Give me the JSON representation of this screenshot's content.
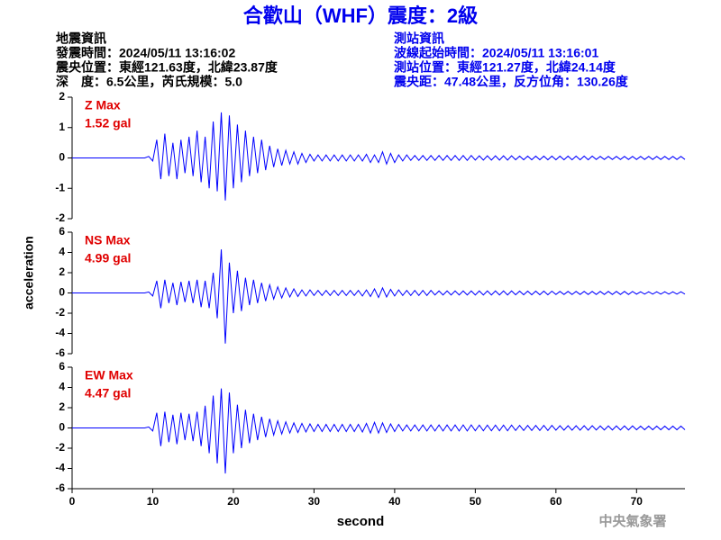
{
  "title": "合歡山（WHF）震度：2級",
  "info_left": [
    "地震資訊",
    "發震時間：2024/05/11 13:16:02",
    "震央位置：東經121.63度，北緯23.87度",
    "深　度：6.5公里，芮氏規模：5.0"
  ],
  "info_right": [
    "測站資訊",
    "波線起始時間：2024/05/11 13:16:01",
    "測站位置：東經121.27度，北緯24.14度",
    "震央距：47.48公里，反方位角：130.26度"
  ],
  "ylabel": "acceleration",
  "xlabel": "second",
  "footer": "中央氣象署",
  "chart_data": [
    {
      "type": "line",
      "max_label": "Z Max",
      "max_value": "1.52 gal",
      "color": "#0000ff",
      "xlim": [
        0,
        76
      ],
      "ylim": [
        -2,
        2
      ],
      "yticks": [
        -2,
        -1,
        0,
        1,
        2
      ],
      "x": [
        0,
        0.5,
        1,
        1.5,
        2,
        2.5,
        3,
        3.5,
        4,
        4.5,
        5,
        5.5,
        6,
        6.5,
        7,
        7.5,
        8,
        8.5,
        9,
        9.5,
        10,
        10.5,
        11,
        11.5,
        12,
        12.5,
        13,
        13.5,
        14,
        14.5,
        15,
        15.5,
        16,
        16.5,
        17,
        17.5,
        18,
        18.5,
        19,
        19.5,
        20,
        20.5,
        21,
        21.5,
        22,
        22.5,
        23,
        23.5,
        24,
        24.5,
        25,
        25.5,
        26,
        26.5,
        27,
        27.5,
        28,
        28.5,
        29,
        29.5,
        30,
        30.5,
        31,
        31.5,
        32,
        32.5,
        33,
        33.5,
        34,
        34.5,
        35,
        35.5,
        36,
        36.5,
        37,
        37.5,
        38,
        38.5,
        39,
        39.5,
        40,
        40.5,
        41,
        41.5,
        42,
        42.5,
        43,
        43.5,
        44,
        44.5,
        45,
        45.5,
        46,
        46.5,
        47,
        47.5,
        48,
        48.5,
        49,
        49.5,
        50,
        50.5,
        51,
        51.5,
        52,
        52.5,
        53,
        53.5,
        54,
        54.5,
        55,
        55.5,
        56,
        56.5,
        57,
        57.5,
        58,
        58.5,
        59,
        59.5,
        60,
        60.5,
        61,
        61.5,
        62,
        62.5,
        63,
        63.5,
        64,
        64.5,
        65,
        65.5,
        66,
        66.5,
        67,
        67.5,
        68,
        68.5,
        69,
        69.5,
        70,
        70.5,
        71,
        71.5,
        72,
        72.5,
        73,
        73.5,
        74,
        74.5,
        75,
        75.5,
        76
      ],
      "values": [
        0,
        0,
        0,
        0,
        0,
        0,
        0,
        0,
        0,
        0,
        0,
        0,
        0,
        0,
        0,
        0,
        0,
        0,
        0,
        0.05,
        -0.1,
        0.6,
        -0.7,
        0.8,
        -0.6,
        0.5,
        -0.7,
        0.6,
        -0.5,
        0.7,
        -0.6,
        0.9,
        -0.8,
        0.7,
        -1,
        1.2,
        -1.1,
        1.5,
        -1.4,
        1.4,
        -1,
        1.1,
        -0.8,
        0.9,
        -0.6,
        0.7,
        -0.5,
        0.6,
        -0.4,
        0.4,
        -0.3,
        0.3,
        -0.25,
        0.25,
        -0.2,
        0.2,
        -0.2,
        0.15,
        -0.15,
        0.12,
        -0.1,
        0.1,
        -0.1,
        0.1,
        -0.1,
        0.1,
        -0.1,
        0.1,
        -0.1,
        0.1,
        -0.1,
        0.1,
        -0.1,
        0.12,
        -0.15,
        0.1,
        -0.15,
        0.2,
        -0.2,
        0.15,
        -0.15,
        0.1,
        -0.1,
        0.1,
        -0.08,
        0.08,
        -0.08,
        0.08,
        -0.08,
        0.08,
        -0.08,
        0.08,
        -0.08,
        0.08,
        -0.08,
        0.08,
        -0.08,
        0.08,
        -0.08,
        0.08,
        -0.07,
        0.07,
        -0.07,
        0.07,
        -0.07,
        0.07,
        -0.07,
        0.07,
        -0.07,
        0.07,
        -0.06,
        0.06,
        -0.06,
        0.06,
        -0.06,
        0.06,
        -0.06,
        0.06,
        -0.06,
        0.06,
        -0.06,
        0.06,
        -0.06,
        0.06,
        -0.06,
        0.06,
        -0.06,
        0.06,
        -0.06,
        0.06,
        -0.05,
        0.05,
        -0.05,
        0.05,
        -0.05,
        0.05,
        -0.05,
        0.05,
        -0.05,
        0.05,
        -0.05,
        0.05,
        -0.05,
        0.05,
        -0.05,
        0.05,
        -0.05,
        0.05,
        -0.05,
        0.05,
        -0.05,
        0.05,
        -0.05
      ]
    },
    {
      "type": "line",
      "max_label": "NS Max",
      "max_value": "4.99 gal",
      "color": "#0000ff",
      "xlim": [
        0,
        76
      ],
      "ylim": [
        -6,
        6
      ],
      "yticks": [
        -6,
        -4,
        -2,
        0,
        2,
        4,
        6
      ],
      "x": [
        0,
        0.5,
        1,
        1.5,
        2,
        2.5,
        3,
        3.5,
        4,
        4.5,
        5,
        5.5,
        6,
        6.5,
        7,
        7.5,
        8,
        8.5,
        9,
        9.5,
        10,
        10.5,
        11,
        11.5,
        12,
        12.5,
        13,
        13.5,
        14,
        14.5,
        15,
        15.5,
        16,
        16.5,
        17,
        17.5,
        18,
        18.5,
        19,
        19.5,
        20,
        20.5,
        21,
        21.5,
        22,
        22.5,
        23,
        23.5,
        24,
        24.5,
        25,
        25.5,
        26,
        26.5,
        27,
        27.5,
        28,
        28.5,
        29,
        29.5,
        30,
        30.5,
        31,
        31.5,
        32,
        32.5,
        33,
        33.5,
        34,
        34.5,
        35,
        35.5,
        36,
        36.5,
        37,
        37.5,
        38,
        38.5,
        39,
        39.5,
        40,
        40.5,
        41,
        41.5,
        42,
        42.5,
        43,
        43.5,
        44,
        44.5,
        45,
        45.5,
        46,
        46.5,
        47,
        47.5,
        48,
        48.5,
        49,
        49.5,
        50,
        50.5,
        51,
        51.5,
        52,
        52.5,
        53,
        53.5,
        54,
        54.5,
        55,
        55.5,
        56,
        56.5,
        57,
        57.5,
        58,
        58.5,
        59,
        59.5,
        60,
        60.5,
        61,
        61.5,
        62,
        62.5,
        63,
        63.5,
        64,
        64.5,
        65,
        65.5,
        66,
        66.5,
        67,
        67.5,
        68,
        68.5,
        69,
        69.5,
        70,
        70.5,
        71,
        71.5,
        72,
        72.5,
        73,
        73.5,
        74,
        74.5,
        75,
        75.5,
        76
      ],
      "values": [
        0,
        0,
        0,
        0,
        0,
        0,
        0,
        0,
        0,
        0,
        0,
        0,
        0,
        0,
        0,
        0,
        0,
        0,
        0,
        0.1,
        -0.3,
        1.2,
        -1.5,
        1.3,
        -1,
        1,
        -1.2,
        1.1,
        -0.9,
        1.2,
        -1,
        1.3,
        -1.4,
        1.2,
        -1.5,
        2,
        -2.5,
        4.3,
        -5,
        3,
        -2,
        2.2,
        -1.8,
        1.5,
        -1.2,
        1.3,
        -1,
        1,
        -0.8,
        0.8,
        -0.6,
        0.6,
        -0.5,
        0.5,
        -0.4,
        0.4,
        -0.35,
        0.3,
        -0.3,
        0.3,
        -0.25,
        0.25,
        -0.25,
        0.25,
        -0.25,
        0.25,
        -0.25,
        0.25,
        -0.25,
        0.25,
        -0.25,
        0.25,
        -0.3,
        0.3,
        -0.35,
        0.4,
        -0.45,
        0.5,
        -0.4,
        0.35,
        -0.3,
        0.3,
        -0.25,
        0.25,
        -0.25,
        0.25,
        -0.25,
        0.25,
        -0.25,
        0.25,
        -0.2,
        0.2,
        -0.2,
        0.2,
        -0.2,
        0.2,
        -0.2,
        0.2,
        -0.2,
        0.2,
        -0.2,
        0.2,
        -0.2,
        0.2,
        -0.2,
        0.2,
        -0.2,
        0.2,
        -0.2,
        0.2,
        -0.18,
        0.18,
        -0.18,
        0.18,
        -0.18,
        0.18,
        -0.18,
        0.18,
        -0.18,
        0.18,
        -0.15,
        0.15,
        -0.15,
        0.15,
        -0.15,
        0.15,
        -0.15,
        0.15,
        -0.15,
        0.15,
        -0.15,
        0.15,
        -0.15,
        0.15,
        -0.15,
        0.15,
        -0.15,
        0.15,
        -0.15,
        0.15,
        -0.12,
        0.12,
        -0.12,
        0.12,
        -0.12,
        0.12,
        -0.12,
        0.12,
        -0.12,
        0.12,
        -0.12,
        0.12,
        -0.12
      ]
    },
    {
      "type": "line",
      "max_label": "EW Max",
      "max_value": "4.47 gal",
      "color": "#0000ff",
      "xlim": [
        0,
        76
      ],
      "ylim": [
        -6,
        6
      ],
      "yticks": [
        -6,
        -4,
        -2,
        0,
        2,
        4,
        6
      ],
      "xticks": [
        0,
        10,
        20,
        30,
        40,
        50,
        60,
        70
      ],
      "x": [
        0,
        0.5,
        1,
        1.5,
        2,
        2.5,
        3,
        3.5,
        4,
        4.5,
        5,
        5.5,
        6,
        6.5,
        7,
        7.5,
        8,
        8.5,
        9,
        9.5,
        10,
        10.5,
        11,
        11.5,
        12,
        12.5,
        13,
        13.5,
        14,
        14.5,
        15,
        15.5,
        16,
        16.5,
        17,
        17.5,
        18,
        18.5,
        19,
        19.5,
        20,
        20.5,
        21,
        21.5,
        22,
        22.5,
        23,
        23.5,
        24,
        24.5,
        25,
        25.5,
        26,
        26.5,
        27,
        27.5,
        28,
        28.5,
        29,
        29.5,
        30,
        30.5,
        31,
        31.5,
        32,
        32.5,
        33,
        33.5,
        34,
        34.5,
        35,
        35.5,
        36,
        36.5,
        37,
        37.5,
        38,
        38.5,
        39,
        39.5,
        40,
        40.5,
        41,
        41.5,
        42,
        42.5,
        43,
        43.5,
        44,
        44.5,
        45,
        45.5,
        46,
        46.5,
        47,
        47.5,
        48,
        48.5,
        49,
        49.5,
        50,
        50.5,
        51,
        51.5,
        52,
        52.5,
        53,
        53.5,
        54,
        54.5,
        55,
        55.5,
        56,
        56.5,
        57,
        57.5,
        58,
        58.5,
        59,
        59.5,
        60,
        60.5,
        61,
        61.5,
        62,
        62.5,
        63,
        63.5,
        64,
        64.5,
        65,
        65.5,
        66,
        66.5,
        67,
        67.5,
        68,
        68.5,
        69,
        69.5,
        70,
        70.5,
        71,
        71.5,
        72,
        72.5,
        73,
        73.5,
        74,
        74.5,
        75,
        75.5,
        76
      ],
      "values": [
        0,
        0,
        0,
        0,
        0,
        0,
        0,
        0,
        0,
        0,
        0,
        0,
        0,
        0,
        0,
        0,
        0,
        0,
        0,
        0.1,
        -0.3,
        1.5,
        -1.8,
        1.6,
        -1.4,
        1.3,
        -1.6,
        1.5,
        -1.2,
        1.4,
        -1.3,
        1.6,
        -1.8,
        2.2,
        -2.5,
        3.2,
        -3.5,
        3.9,
        -4.5,
        3.5,
        -2.5,
        2.3,
        -2,
        1.8,
        -1.5,
        1.4,
        -1.2,
        1.1,
        -0.9,
        0.9,
        -0.7,
        0.7,
        -0.6,
        0.6,
        -0.5,
        0.5,
        -0.45,
        0.45,
        -0.4,
        0.4,
        -0.35,
        0.35,
        -0.35,
        0.35,
        -0.35,
        0.35,
        -0.35,
        0.35,
        -0.35,
        0.35,
        -0.35,
        0.35,
        -0.4,
        0.45,
        -0.5,
        0.55,
        -0.5,
        0.5,
        -0.45,
        0.4,
        -0.35,
        0.35,
        -0.3,
        0.3,
        -0.3,
        0.3,
        -0.3,
        0.3,
        -0.3,
        0.3,
        -0.3,
        0.3,
        -0.3,
        0.3,
        -0.3,
        0.3,
        -0.3,
        0.3,
        -0.3,
        0.3,
        -0.28,
        0.28,
        -0.28,
        0.28,
        -0.28,
        0.28,
        -0.28,
        0.28,
        -0.28,
        0.28,
        -0.25,
        0.25,
        -0.25,
        0.25,
        -0.25,
        0.25,
        -0.25,
        0.25,
        -0.25,
        0.25,
        -0.22,
        0.22,
        -0.22,
        0.22,
        -0.22,
        0.22,
        -0.22,
        0.22,
        -0.22,
        0.22,
        -0.2,
        0.2,
        -0.2,
        0.2,
        -0.2,
        0.2,
        -0.2,
        0.2,
        -0.2,
        0.2,
        -0.18,
        0.18,
        -0.18,
        0.18,
        -0.18,
        0.18,
        -0.18,
        0.18,
        -0.18,
        0.18,
        -0.18,
        0.18,
        -0.18
      ]
    }
  ]
}
